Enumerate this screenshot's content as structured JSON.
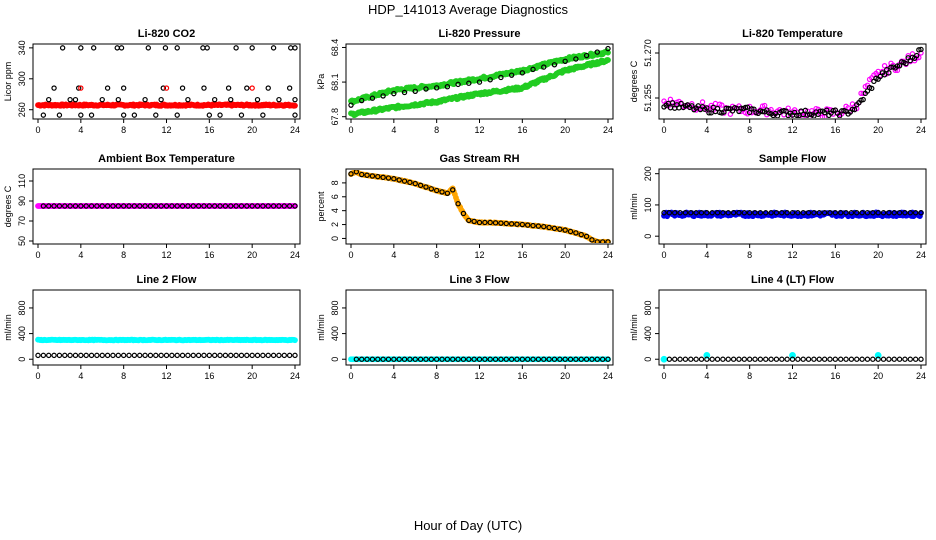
{
  "title": "HDP_141013  Average Diagnostics",
  "xlabel": "Hour of Day (UTC)",
  "chart_data": [
    {
      "type": "scatter",
      "title": "Li-820 CO2",
      "ylabel": "Licor ppm",
      "ylim": [
        248,
        345
      ],
      "yticks": [
        "260",
        "300",
        "340"
      ],
      "ytick_values": [
        260,
        300,
        340
      ],
      "xlim": [
        0,
        24
      ],
      "xticks": [
        "0",
        "4",
        "8",
        "12",
        "16",
        "20",
        "24"
      ],
      "series": [
        {
          "name": "co2-red",
          "color": "#ff0000",
          "style": "dense",
          "x": [
            0,
            24
          ],
          "y": [
            266,
            266
          ],
          "jitter": 1
        },
        {
          "name": "co2-black-low",
          "color": "#000000",
          "style": "circle",
          "x": [
            0.5,
            2,
            4,
            5,
            8,
            9,
            11,
            13,
            16,
            17,
            19,
            21,
            24
          ],
          "y": [
            253,
            253,
            253,
            253,
            253,
            253,
            253,
            253,
            253,
            253,
            253,
            253,
            253
          ]
        },
        {
          "name": "co2-black-mid",
          "color": "#000000",
          "style": "circle",
          "x": [
            1,
            3,
            3.5,
            6,
            7.5,
            10,
            11.5,
            14,
            16.5,
            18,
            20.5,
            22.5,
            24
          ],
          "y": [
            273,
            273,
            273,
            273,
            273,
            273,
            273,
            273,
            273,
            273,
            273,
            273,
            273
          ]
        },
        {
          "name": "co2-black-upper",
          "color": "#000000",
          "style": "circle",
          "x": [
            1.5,
            3.8,
            6.5,
            8,
            11.7,
            13.5,
            15.5,
            17.8,
            19.5,
            21.5,
            23.5
          ],
          "y": [
            288,
            288,
            288,
            288,
            288,
            288,
            288,
            288,
            288,
            288,
            288
          ]
        },
        {
          "name": "co2-black-high",
          "color": "#000000",
          "style": "circle",
          "x": [
            2.3,
            4,
            5.2,
            7.4,
            7.8,
            10.3,
            11.9,
            13,
            15.4,
            15.8,
            18.5,
            20,
            22,
            23.6,
            24
          ],
          "y": [
            340,
            340,
            340,
            340,
            340,
            340,
            340,
            340,
            340,
            340,
            340,
            340,
            340,
            340,
            340
          ]
        },
        {
          "name": "co2-red-mid",
          "color": "#ff0000",
          "style": "circle",
          "x": [
            4,
            12,
            20
          ],
          "y": [
            288,
            288,
            288
          ]
        }
      ]
    },
    {
      "type": "scatter",
      "title": "Li-820 Pressure",
      "ylabel": "kPa",
      "ylim": [
        67.78,
        68.43
      ],
      "yticks": [
        "67.8",
        "68.1",
        "68.4"
      ],
      "ytick_values": [
        67.8,
        68.1,
        68.4
      ],
      "xlim": [
        0,
        24
      ],
      "xticks": [
        "0",
        "4",
        "8",
        "12",
        "16",
        "20",
        "24"
      ],
      "series": [
        {
          "name": "pressure-green-upper",
          "color": "#22cc22",
          "style": "dense",
          "x": [
            0,
            4,
            8,
            12,
            16,
            20,
            24
          ],
          "y": [
            67.93,
            68.03,
            68.07,
            68.13,
            68.2,
            68.3,
            68.36
          ],
          "jitter": 0.012
        },
        {
          "name": "pressure-green-lower",
          "color": "#22cc22",
          "style": "dense",
          "x": [
            0,
            4,
            8,
            12,
            16,
            20,
            24
          ],
          "y": [
            67.82,
            67.88,
            67.93,
            68.0,
            68.05,
            68.2,
            68.29
          ],
          "jitter": 0.012
        },
        {
          "name": "pressure-black",
          "color": "#000000",
          "style": "circle",
          "x": [
            0,
            1,
            2,
            3,
            4,
            5,
            6,
            7,
            8,
            9,
            10,
            11,
            12,
            13,
            14,
            15,
            16,
            17,
            18,
            19,
            20,
            21,
            22,
            23,
            24
          ],
          "y": [
            67.9,
            67.94,
            67.96,
            67.98,
            68.0,
            68.01,
            68.02,
            68.04,
            68.05,
            68.06,
            68.08,
            68.09,
            68.1,
            68.12,
            68.14,
            68.16,
            68.18,
            68.21,
            68.23,
            68.25,
            68.28,
            68.3,
            68.33,
            68.36,
            68.39
          ]
        }
      ]
    },
    {
      "type": "scatter",
      "title": "Li-820 Temperature",
      "ylabel": "degrees C",
      "ylim": [
        51.248,
        51.273
      ],
      "yticks": [
        "51.255",
        "51.270"
      ],
      "ytick_values": [
        51.255,
        51.27
      ],
      "xlim": [
        0,
        24
      ],
      "xticks": [
        "0",
        "4",
        "8",
        "12",
        "16",
        "20",
        "24"
      ],
      "series": [
        {
          "name": "temperature-magenta",
          "color": "#ff00ff",
          "style": "circle",
          "x": [
            0,
            2,
            4,
            6,
            8,
            10,
            12,
            14,
            16,
            17,
            18,
            19,
            20,
            21,
            22,
            23,
            24
          ],
          "y": [
            51.254,
            51.253,
            51.252,
            51.251,
            51.251,
            51.251,
            51.25,
            51.25,
            51.25,
            51.251,
            51.253,
            51.259,
            51.263,
            51.265,
            51.266,
            51.268,
            51.27
          ],
          "jitter": 0.0016
        },
        {
          "name": "temperature-black",
          "color": "#000000",
          "style": "circle",
          "x": [
            0,
            2,
            4,
            6,
            8,
            10,
            12,
            14,
            16,
            17,
            18,
            19,
            20,
            21,
            22,
            23,
            24
          ],
          "y": [
            51.253,
            51.252,
            51.251,
            51.251,
            51.251,
            51.25,
            51.25,
            51.25,
            51.25,
            51.25,
            51.252,
            51.257,
            51.262,
            51.264,
            51.266,
            51.268,
            51.271
          ],
          "jitter": 0.001
        }
      ]
    },
    {
      "type": "scatter",
      "title": "Ambient Box Temperature",
      "ylabel": "degrees C",
      "ylim": [
        47,
        122
      ],
      "yticks": [
        "50",
        "70",
        "90",
        "110"
      ],
      "ytick_values": [
        50,
        70,
        90,
        110
      ],
      "xlim": [
        0,
        24
      ],
      "xticks": [
        "0",
        "4",
        "8",
        "12",
        "16",
        "20",
        "24"
      ],
      "series": [
        {
          "name": "box-temp-magenta",
          "color": "#ff00ff",
          "style": "dense",
          "x": [
            0,
            24
          ],
          "y": [
            85,
            85
          ],
          "jitter": 0
        },
        {
          "name": "box-temp-black",
          "color": "#000000",
          "style": "circle",
          "x": [
            0.5,
            24
          ],
          "y": [
            85,
            85
          ],
          "step": 0.5
        }
      ]
    },
    {
      "type": "scatter",
      "title": "Gas Stream RH",
      "ylabel": "percent",
      "ylim": [
        -0.8,
        10
      ],
      "yticks": [
        "0",
        "2",
        "4",
        "6",
        "8"
      ],
      "ytick_values": [
        0,
        2,
        4,
        6,
        8
      ],
      "xlim": [
        0,
        24
      ],
      "xticks": [
        "0",
        "4",
        "8",
        "12",
        "16",
        "20",
        "24"
      ],
      "series": [
        {
          "name": "rh-orange",
          "color": "#ffa500",
          "style": "dense",
          "x": [
            0,
            0.5,
            1,
            2,
            4,
            6,
            8,
            9,
            9.5,
            10,
            10.5,
            11,
            12,
            13,
            14,
            16,
            18,
            20,
            21,
            22,
            22.5,
            23,
            24
          ],
          "y": [
            9.3,
            9.6,
            9.2,
            9.0,
            8.6,
            7.9,
            6.9,
            6.5,
            7.2,
            5.0,
            3.6,
            2.6,
            2.3,
            2.3,
            2.2,
            2.0,
            1.7,
            1.2,
            0.8,
            0.3,
            -0.2,
            -0.5,
            -0.5
          ],
          "jitter": 0.05
        },
        {
          "name": "rh-black",
          "color": "#000000",
          "style": "circle",
          "x": [
            0,
            0.5,
            1,
            2,
            4,
            6,
            8,
            9,
            9.5,
            10,
            10.5,
            11,
            12,
            13,
            14,
            16,
            18,
            20,
            21,
            22,
            22.5,
            23,
            24
          ],
          "y": [
            9.3,
            9.6,
            9.2,
            9.0,
            8.6,
            7.9,
            6.9,
            6.5,
            7.0,
            5.0,
            3.6,
            2.6,
            2.3,
            2.3,
            2.2,
            2.0,
            1.7,
            1.2,
            0.8,
            0.3,
            -0.2,
            -0.5,
            -0.5
          ],
          "step": 0.5
        }
      ]
    },
    {
      "type": "scatter",
      "title": "Sample Flow",
      "ylabel": "ml/min",
      "ylim": [
        -25,
        215
      ],
      "yticks": [
        "0",
        "100",
        "200"
      ],
      "ytick_values": [
        0,
        100,
        200
      ],
      "xlim": [
        0,
        24
      ],
      "xticks": [
        "0",
        "4",
        "8",
        "12",
        "16",
        "20",
        "24"
      ],
      "series": [
        {
          "name": "sample-flow-blue",
          "color": "#0000ee",
          "style": "dense",
          "x": [
            0,
            24
          ],
          "y": [
            70,
            70
          ],
          "jitter": 6
        },
        {
          "name": "sample-flow-black",
          "color": "#000000",
          "style": "circle",
          "x": [
            0,
            24
          ],
          "y": [
            75,
            75
          ],
          "step": 0.5
        }
      ]
    },
    {
      "type": "scatter",
      "title": "Line 2 Flow",
      "ylabel": "ml/min",
      "ylim": [
        -90,
        1080
      ],
      "yticks": [
        "0",
        "400",
        "800"
      ],
      "ytick_values": [
        0,
        400,
        800
      ],
      "xlim": [
        0,
        24
      ],
      "xticks": [
        "0",
        "4",
        "8",
        "12",
        "16",
        "20",
        "24"
      ],
      "series": [
        {
          "name": "line2-cyan",
          "color": "#00ffff",
          "style": "dense",
          "x": [
            0,
            24
          ],
          "y": [
            300,
            300
          ],
          "jitter": 5
        },
        {
          "name": "line2-black",
          "color": "#000000",
          "style": "circle",
          "x": [
            0,
            24
          ],
          "y": [
            60,
            60
          ],
          "step": 0.5
        }
      ]
    },
    {
      "type": "scatter",
      "title": "Line 3 Flow",
      "ylabel": "ml/min",
      "ylim": [
        -90,
        1080
      ],
      "yticks": [
        "0",
        "400",
        "800"
      ],
      "ytick_values": [
        0,
        400,
        800
      ],
      "xlim": [
        0,
        24
      ],
      "xticks": [
        "0",
        "4",
        "8",
        "12",
        "16",
        "20",
        "24"
      ],
      "series": [
        {
          "name": "line3-cyan",
          "color": "#00ffff",
          "style": "dense",
          "x": [
            0,
            24
          ],
          "y": [
            0,
            0
          ],
          "jitter": 0
        },
        {
          "name": "line3-black",
          "color": "#000000",
          "style": "circle",
          "x": [
            0.5,
            24
          ],
          "y": [
            0,
            0
          ],
          "step": 0.5
        }
      ]
    },
    {
      "type": "scatter",
      "title": "Line 4 (LT) Flow",
      "ylabel": "ml/min",
      "ylim": [
        -90,
        1080
      ],
      "yticks": [
        "0",
        "400",
        "800"
      ],
      "ytick_values": [
        0,
        400,
        800
      ],
      "xlim": [
        0,
        24
      ],
      "xticks": [
        "0",
        "4",
        "8",
        "12",
        "16",
        "20",
        "24"
      ],
      "series": [
        {
          "name": "line4-cyan-spikes",
          "color": "#00ffff",
          "style": "circle-filled",
          "x": [
            0,
            4,
            12,
            20
          ],
          "y": [
            0,
            60,
            60,
            60
          ]
        },
        {
          "name": "line4-black",
          "color": "#000000",
          "style": "circle",
          "x": [
            0.5,
            24
          ],
          "y": [
            0,
            0
          ],
          "step": 0.5
        }
      ]
    }
  ]
}
